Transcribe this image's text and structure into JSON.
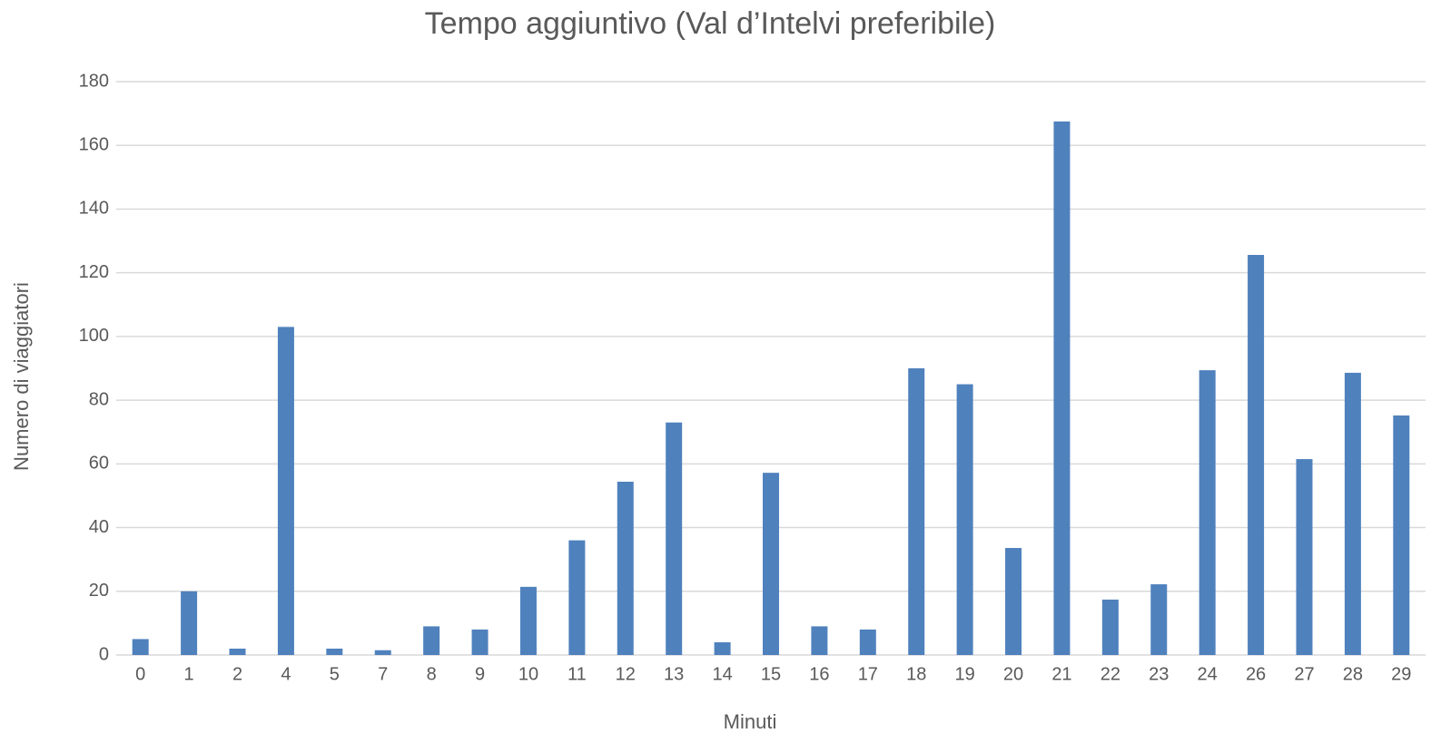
{
  "chart_data": {
    "type": "bar",
    "title": "Tempo aggiuntivo (Val d’Intelvi preferibile)",
    "x_label": "Minuti",
    "y_label": "Numero di viaggiatori",
    "categories": [
      0,
      1,
      2,
      4,
      5,
      7,
      8,
      9,
      10,
      11,
      12,
      13,
      14,
      15,
      16,
      17,
      18,
      19,
      20,
      21,
      22,
      23,
      24,
      26,
      27,
      28,
      29
    ],
    "values": [
      5,
      20,
      2,
      103,
      2,
      1.5,
      9,
      8,
      21.4,
      36,
      54.4,
      73,
      4,
      57.2,
      9,
      8,
      90,
      85,
      33.6,
      167.5,
      17.4,
      22.2,
      89.4,
      125.6,
      61.5,
      88.6,
      75.2
    ],
    "color": "#4f81bd",
    "ylim": [
      0,
      180
    ],
    "yticks": [
      0,
      20,
      40,
      60,
      80,
      100,
      120,
      140,
      160,
      180
    ],
    "grid": true
  }
}
